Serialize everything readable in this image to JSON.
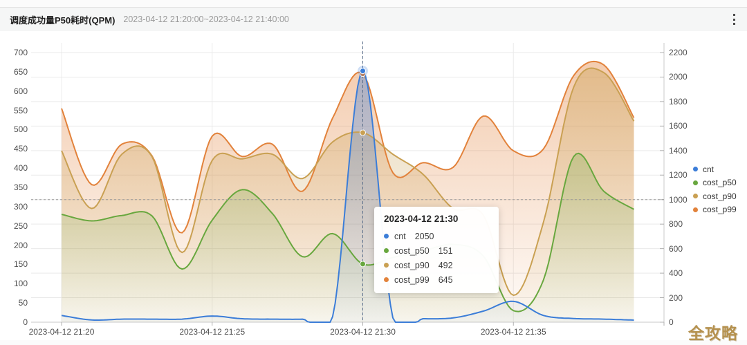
{
  "header": {
    "title": "调度成功量P50耗时(QPM)",
    "subtitle": "2023-04-12 21:20:00~2023-04-12 21:40:00"
  },
  "watermark": "全攻略",
  "legend": [
    {
      "label": "cnt",
      "color": "#3b7dd8"
    },
    {
      "label": "cost_p50",
      "color": "#68a73e"
    },
    {
      "label": "cost_p90",
      "color": "#c9a052"
    },
    {
      "label": "cost_p99",
      "color": "#e2823b"
    }
  ],
  "tooltip": {
    "title": "2023-04-12 21:30",
    "rows": [
      {
        "name": "cnt",
        "value": "2050",
        "color": "#3b7dd8"
      },
      {
        "name": "cost_p50",
        "value": "151",
        "color": "#68a73e"
      },
      {
        "name": "cost_p90",
        "value": "492",
        "color": "#c9a052"
      },
      {
        "name": "cost_p99",
        "value": "645",
        "color": "#e2823b"
      }
    ]
  },
  "chart_data": {
    "type": "line",
    "x": [
      "21:20",
      "21:21",
      "21:22",
      "21:23",
      "21:24",
      "21:25",
      "21:26",
      "21:27",
      "21:28",
      "21:29",
      "21:30",
      "21:31",
      "21:32",
      "21:33",
      "21:34",
      "21:35",
      "21:36",
      "21:37",
      "21:38",
      "21:39"
    ],
    "x_ticks": [
      {
        "index": 0,
        "label": "2023-04-12 21:20"
      },
      {
        "index": 5,
        "label": "2023-04-12 21:25"
      },
      {
        "index": 10,
        "label": "2023-04-12 21:30"
      },
      {
        "index": 15,
        "label": "2023-04-12 21:35"
      }
    ],
    "series": [
      {
        "name": "cost_p99",
        "axis": "left",
        "color": "#e2823b",
        "values": [
          555,
          357,
          462,
          432,
          232,
          483,
          430,
          462,
          340,
          530,
          645,
          388,
          414,
          402,
          535,
          445,
          450,
          640,
          668,
          531
        ]
      },
      {
        "name": "cost_p90",
        "axis": "left",
        "color": "#c9a052",
        "values": [
          445,
          295,
          436,
          430,
          181,
          420,
          424,
          436,
          373,
          468,
          492,
          436,
          384,
          295,
          278,
          70,
          260,
          610,
          648,
          522
        ]
      },
      {
        "name": "cost_p50",
        "axis": "left",
        "color": "#68a73e",
        "values": [
          280,
          263,
          277,
          276,
          138,
          265,
          344,
          282,
          170,
          230,
          151,
          168,
          185,
          202,
          172,
          30,
          110,
          430,
          340,
          293
        ]
      },
      {
        "name": "cnt",
        "axis": "right",
        "color": "#3b7dd8",
        "values": [
          55,
          18,
          25,
          25,
          25,
          50,
          28,
          25,
          25,
          45,
          2050,
          35,
          28,
          35,
          90,
          170,
          55,
          30,
          25,
          17
        ]
      }
    ],
    "left_axis": {
      "min": 0,
      "max": 700,
      "step": 50
    },
    "right_axis": {
      "min": 0,
      "max": 2200,
      "step": 200
    },
    "crosshair": {
      "x_index": 10,
      "y_right_value": 1000
    },
    "grid": true,
    "legend_position": "right",
    "title": "调度成功量P50耗时(QPM)"
  }
}
